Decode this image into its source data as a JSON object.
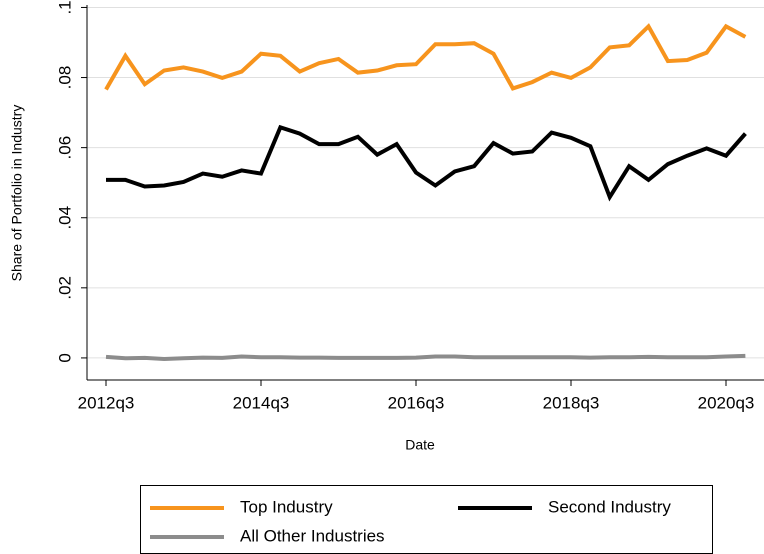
{
  "chart_data": {
    "type": "line",
    "x_label": "Date",
    "y_label": "Share of Portfolio in Industry",
    "categories": [
      "2012q3",
      null,
      null,
      null,
      null,
      null,
      null,
      null,
      "2014q3",
      null,
      null,
      null,
      null,
      null,
      null,
      null,
      "2016q3",
      null,
      null,
      null,
      null,
      null,
      null,
      null,
      "2018q3",
      null,
      null,
      null,
      null,
      null,
      null,
      null,
      "2020q3",
      null
    ],
    "series": [
      {
        "name": "Top Industry",
        "color": "#f7941d",
        "values": [
          0.0766,
          0.0862,
          0.0781,
          0.082,
          0.0829,
          0.0817,
          0.0799,
          0.0817,
          0.0868,
          0.0862,
          0.0817,
          0.0841,
          0.0853,
          0.0814,
          0.082,
          0.0835,
          0.0838,
          0.0895,
          0.0895,
          0.0898,
          0.0868,
          0.0769,
          0.0787,
          0.0814,
          0.0799,
          0.0829,
          0.0886,
          0.0892,
          0.0946,
          0.0847,
          0.085,
          0.0871,
          0.0946,
          0.0916
        ]
      },
      {
        "name": "Second Industry",
        "color": "#000000",
        "values": [
          0.0508,
          0.0508,
          0.0489,
          0.0492,
          0.0502,
          0.0526,
          0.0517,
          0.0535,
          0.0526,
          0.0658,
          0.064,
          0.061,
          0.061,
          0.0631,
          0.058,
          0.061,
          0.0529,
          0.0492,
          0.0532,
          0.0547,
          0.0613,
          0.0583,
          0.0589,
          0.0643,
          0.0628,
          0.0604,
          0.0459,
          0.0547,
          0.0508,
          0.0553,
          0.0577,
          0.0598,
          0.0577,
          0.064
        ]
      },
      {
        "name": "All Other Industries",
        "color": "#8c8c8c",
        "values": [
          0.0003,
          -0.0001,
          0.0,
          -0.0003,
          -0.0001,
          0.0001,
          0.0,
          0.0004,
          0.0002,
          0.0002,
          0.0001,
          0.0001,
          0.0,
          0.0,
          0.0,
          0.0,
          0.0001,
          0.0004,
          0.0004,
          0.0002,
          0.0002,
          0.0002,
          0.0002,
          0.0002,
          0.0002,
          0.0001,
          0.0002,
          0.0002,
          0.0003,
          0.0002,
          0.0002,
          0.0002,
          0.0004,
          0.0006
        ]
      }
    ],
    "ylim": [
      -0.0063,
      0.1007
    ],
    "yticks": [
      0,
      {
        "value": 0.02,
        "label": ".02"
      },
      {
        "value": 0.04,
        "label": ".04"
      },
      {
        "value": 0.06,
        "label": ".06"
      },
      {
        "value": 0.08,
        "label": ".08"
      },
      {
        "value": 0.1,
        "label": ".1"
      }
    ],
    "grid": true,
    "legend": "bottom"
  }
}
